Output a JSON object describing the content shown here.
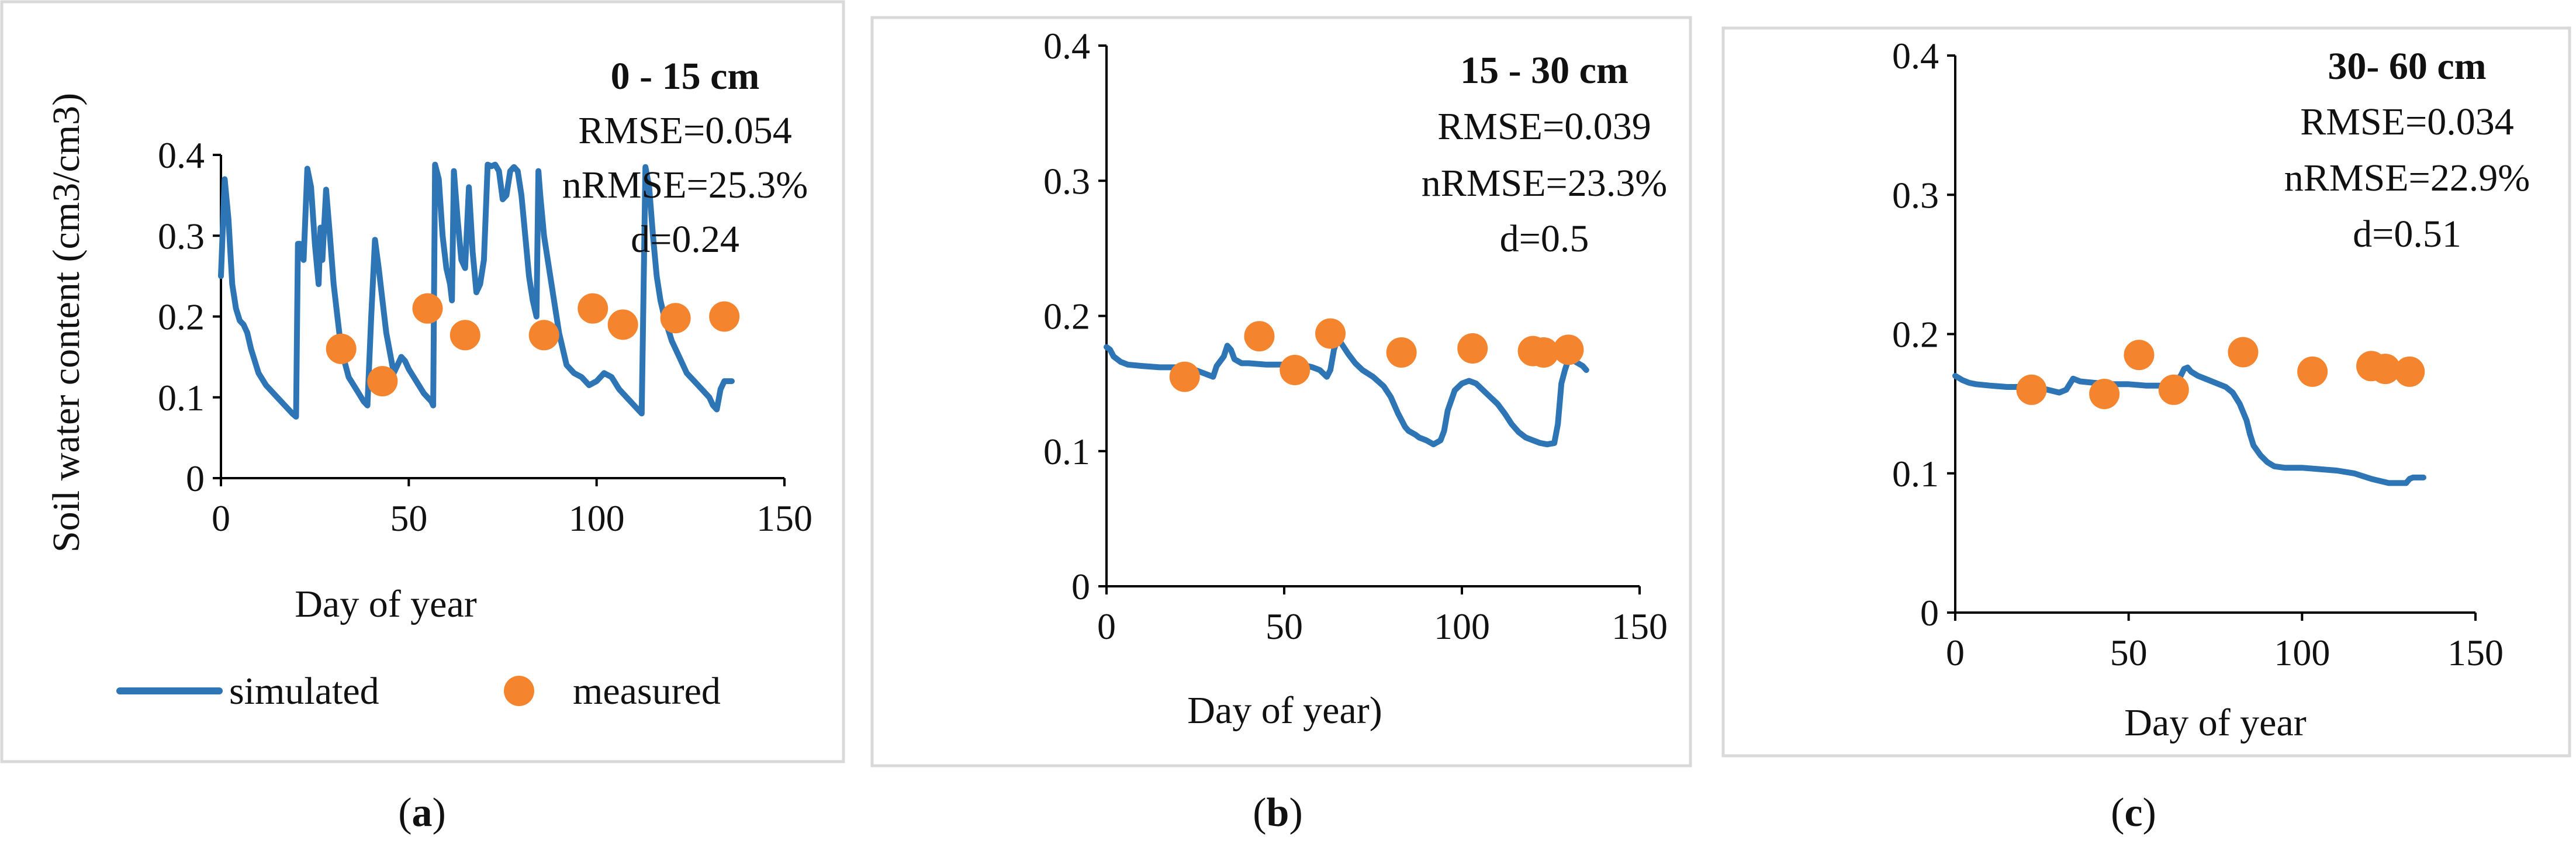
{
  "colors": {
    "simulated": "#2E75B6",
    "measured": "#F4852E"
  },
  "legend": {
    "simulated": "simulated",
    "measured": "measured"
  },
  "chart_data": [
    {
      "type": "line+scatter",
      "caption": "(a)",
      "caption_prefix": "(",
      "caption_letter": "a",
      "caption_suffix": ")",
      "depth": "0 - 15 cm",
      "stats": [
        "RMSE=0.054",
        "nRMSE=25.3%",
        "d=0.24"
      ],
      "xlabel": "Day of year",
      "ylabel": "Soil water content (cm3/cm3)",
      "xlim": [
        0,
        150
      ],
      "ylim": [
        0,
        0.4
      ],
      "xticks": [
        0,
        50,
        100,
        150
      ],
      "yticks": [
        0,
        0.1,
        0.2,
        0.3,
        0.4
      ],
      "xtick_labels": [
        "0",
        "50",
        "100",
        "150"
      ],
      "ytick_labels": [
        "0",
        "0.1",
        "0.2",
        "0.3",
        "0.4"
      ],
      "simulated": {
        "x": [
          0,
          1,
          2,
          3,
          4,
          5,
          6,
          7,
          8,
          10,
          12,
          15,
          18,
          19,
          20,
          20.5,
          21,
          22,
          23,
          24,
          25,
          26,
          26.5,
          27,
          28,
          29,
          30,
          31,
          32,
          34,
          36,
          38,
          39,
          40,
          41,
          42,
          43,
          44,
          45,
          46,
          47,
          48,
          49,
          50,
          52,
          54,
          56,
          56.5,
          57,
          58,
          59,
          60,
          61,
          61.5,
          62,
          63,
          64,
          65,
          66,
          67,
          68,
          69,
          70,
          71,
          72,
          73,
          74,
          75,
          76,
          77,
          78,
          79,
          80,
          81,
          82,
          83,
          84,
          84.5,
          85,
          86,
          88,
          90,
          92,
          94,
          96,
          98,
          100,
          102,
          104,
          106,
          108,
          110,
          111,
          112,
          113,
          114,
          115,
          116,
          117,
          118,
          120,
          122,
          124,
          126,
          128,
          130,
          131,
          132,
          133,
          134,
          135,
          136
        ],
        "y": [
          0.25,
          0.37,
          0.32,
          0.24,
          0.21,
          0.195,
          0.19,
          0.18,
          0.16,
          0.13,
          0.115,
          0.1,
          0.085,
          0.08,
          0.076,
          0.29,
          0.29,
          0.27,
          0.383,
          0.36,
          0.29,
          0.24,
          0.31,
          0.27,
          0.357,
          0.3,
          0.24,
          0.2,
          0.16,
          0.125,
          0.11,
          0.095,
          0.09,
          0.2,
          0.295,
          0.26,
          0.22,
          0.18,
          0.155,
          0.13,
          0.14,
          0.15,
          0.145,
          0.135,
          0.12,
          0.105,
          0.095,
          0.09,
          0.388,
          0.37,
          0.3,
          0.26,
          0.24,
          0.22,
          0.38,
          0.32,
          0.27,
          0.26,
          0.36,
          0.28,
          0.23,
          0.24,
          0.27,
          0.388,
          0.386,
          0.388,
          0.38,
          0.345,
          0.35,
          0.38,
          0.385,
          0.38,
          0.35,
          0.3,
          0.25,
          0.22,
          0.2,
          0.38,
          0.35,
          0.3,
          0.24,
          0.18,
          0.14,
          0.13,
          0.125,
          0.115,
          0.12,
          0.13,
          0.125,
          0.11,
          0.1,
          0.09,
          0.085,
          0.08,
          0.385,
          0.36,
          0.3,
          0.25,
          0.22,
          0.2,
          0.17,
          0.15,
          0.13,
          0.12,
          0.11,
          0.1,
          0.09,
          0.085,
          0.11,
          0.12,
          0.12,
          0.12
        ]
      },
      "measured": {
        "x": [
          32,
          43,
          55,
          65,
          86,
          99,
          107,
          121,
          134
        ],
        "y": [
          0.16,
          0.12,
          0.21,
          0.177,
          0.177,
          0.21,
          0.19,
          0.198,
          0.2
        ]
      }
    },
    {
      "type": "line+scatter",
      "caption": "(b)",
      "caption_prefix": "(",
      "caption_letter": "b",
      "caption_suffix": ")",
      "depth": "15 - 30 cm",
      "stats": [
        "RMSE=0.039",
        "nRMSE=23.3%",
        "d=0.5"
      ],
      "xlabel": "Day of year)",
      "ylabel": "",
      "xlim": [
        0,
        150
      ],
      "ylim": [
        0,
        0.4
      ],
      "xticks": [
        0,
        50,
        100,
        150
      ],
      "yticks": [
        0,
        0.1,
        0.2,
        0.3,
        0.4
      ],
      "xtick_labels": [
        "0",
        "50",
        "100",
        "150"
      ],
      "ytick_labels": [
        "0",
        "0.1",
        "0.2",
        "0.3",
        "0.4"
      ],
      "simulated": {
        "x": [
          0,
          1,
          2,
          4,
          6,
          10,
          15,
          20,
          25,
          30,
          31,
          33,
          34,
          35,
          36,
          38,
          40,
          45,
          50,
          55,
          58,
          60,
          62,
          63,
          64,
          65,
          66,
          68,
          70,
          72,
          75,
          78,
          80,
          82,
          84,
          85,
          87,
          88,
          90,
          92,
          94,
          95,
          96,
          98,
          100,
          102,
          104,
          106,
          108,
          110,
          112,
          114,
          116,
          118,
          120,
          122,
          124,
          126,
          127,
          128,
          129,
          130,
          131,
          132,
          134,
          135
        ],
        "y": [
          0.177,
          0.175,
          0.17,
          0.166,
          0.164,
          0.163,
          0.162,
          0.162,
          0.16,
          0.155,
          0.163,
          0.17,
          0.178,
          0.175,
          0.168,
          0.165,
          0.165,
          0.164,
          0.164,
          0.164,
          0.162,
          0.16,
          0.155,
          0.16,
          0.175,
          0.183,
          0.18,
          0.172,
          0.165,
          0.16,
          0.155,
          0.148,
          0.14,
          0.128,
          0.118,
          0.115,
          0.112,
          0.11,
          0.108,
          0.105,
          0.108,
          0.115,
          0.13,
          0.145,
          0.15,
          0.152,
          0.15,
          0.145,
          0.14,
          0.135,
          0.128,
          0.12,
          0.114,
          0.11,
          0.108,
          0.106,
          0.105,
          0.106,
          0.12,
          0.15,
          0.16,
          0.168,
          0.168,
          0.166,
          0.163,
          0.16
        ]
      },
      "measured": {
        "x": [
          22,
          43,
          53,
          63,
          83,
          103,
          120,
          123,
          130
        ],
        "y": [
          0.155,
          0.185,
          0.16,
          0.187,
          0.173,
          0.176,
          0.174,
          0.173,
          0.175
        ]
      }
    },
    {
      "type": "line+scatter",
      "caption": "(c)",
      "caption_prefix": "(",
      "caption_letter": "c",
      "caption_suffix": ")",
      "depth": "30- 60 cm",
      "stats": [
        "RMSE=0.034",
        "nRMSE=22.9%",
        "d=0.51"
      ],
      "xlabel": "Day of year",
      "ylabel": "",
      "xlim": [
        0,
        150
      ],
      "ylim": [
        0,
        0.4
      ],
      "xticks": [
        0,
        50,
        100,
        150
      ],
      "yticks": [
        0,
        0.1,
        0.2,
        0.3,
        0.4
      ],
      "xtick_labels": [
        "0",
        "50",
        "100",
        "150"
      ],
      "ytick_labels": [
        "0",
        "0.1",
        "0.2",
        "0.3",
        "0.4"
      ],
      "simulated": {
        "x": [
          0,
          2,
          4,
          6,
          10,
          15,
          20,
          25,
          30,
          32,
          34,
          36,
          40,
          45,
          50,
          55,
          60,
          63,
          65,
          66,
          67,
          68,
          70,
          72,
          75,
          78,
          80,
          82,
          84,
          85,
          86,
          88,
          90,
          92,
          95,
          100,
          105,
          110,
          115,
          120,
          125,
          128,
          130,
          131,
          132,
          134,
          135
        ],
        "y": [
          0.17,
          0.167,
          0.165,
          0.164,
          0.163,
          0.162,
          0.162,
          0.161,
          0.158,
          0.16,
          0.168,
          0.166,
          0.165,
          0.164,
          0.164,
          0.163,
          0.163,
          0.165,
          0.17,
          0.175,
          0.176,
          0.173,
          0.17,
          0.168,
          0.165,
          0.162,
          0.158,
          0.15,
          0.138,
          0.128,
          0.12,
          0.113,
          0.108,
          0.105,
          0.104,
          0.104,
          0.103,
          0.102,
          0.1,
          0.096,
          0.093,
          0.093,
          0.093,
          0.096,
          0.097,
          0.097,
          0.097
        ]
      },
      "measured": {
        "x": [
          22,
          43,
          53,
          63,
          83,
          103,
          120,
          124,
          131
        ],
        "y": [
          0.16,
          0.157,
          0.185,
          0.16,
          0.187,
          0.173,
          0.177,
          0.175,
          0.173
        ]
      }
    }
  ]
}
